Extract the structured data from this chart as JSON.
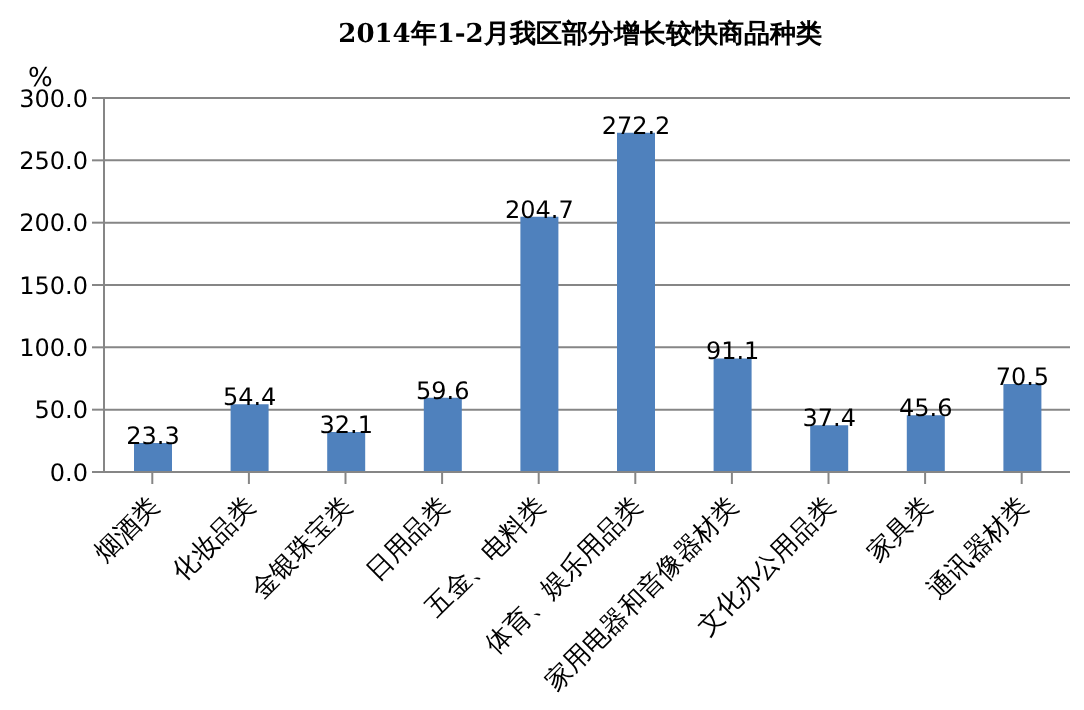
{
  "chart_data": {
    "type": "bar",
    "title": "2014年1-2月我区部分增长较快商品种类",
    "ylabel": "%",
    "categories": [
      "烟酒类",
      "化妆品类",
      "金银珠宝类",
      "日用品类",
      "五金、电料类",
      "体育、娱乐用品类",
      "家用电器和音像器材类",
      "文化办公用品类",
      "家具类",
      "通讯器材类"
    ],
    "values": [
      23.3,
      54.4,
      32.1,
      59.6,
      204.7,
      272.2,
      91.1,
      37.4,
      45.6,
      70.5
    ],
    "color": "#4f81bd",
    "ylim": [
      0,
      300
    ],
    "yticks": [
      {
        "value": 0,
        "label": "0.0"
      },
      {
        "value": 50,
        "label": "50.0"
      },
      {
        "value": 100,
        "label": "100.0"
      },
      {
        "value": 150,
        "label": "150.0"
      },
      {
        "value": 200,
        "label": "200.0"
      },
      {
        "value": 250,
        "label": "250.0"
      },
      {
        "value": 300,
        "label": "300.0"
      }
    ],
    "grid": "y",
    "data_labels": true,
    "legend": false
  }
}
